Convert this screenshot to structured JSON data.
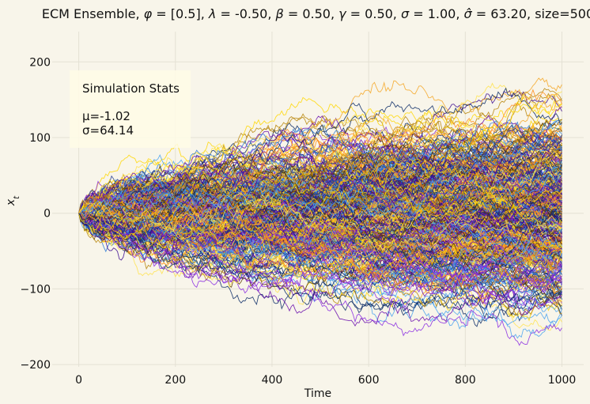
{
  "chart_data": {
    "type": "line",
    "title_main": "ECM Ensemble, ",
    "title_params": [
      {
        "sym": "φ",
        "hat": false,
        "value": "[0.5]"
      },
      {
        "sym": "λ",
        "hat": false,
        "value": "-0.50"
      },
      {
        "sym": "β",
        "hat": false,
        "value": "0.50"
      },
      {
        "sym": "γ",
        "hat": false,
        "value": "0.50"
      },
      {
        "sym": "σ",
        "hat": false,
        "value": "1.00"
      },
      {
        "sym": "σ",
        "hat": true,
        "value": "63.20"
      }
    ],
    "title_size": "size=500",
    "xlabel": "Time",
    "ylabel_base": "x",
    "ylabel_sub": "t",
    "xlim": [
      -55,
      1045
    ],
    "ylim": [
      -203,
      240
    ],
    "x_ticks": [
      0,
      200,
      400,
      600,
      800,
      1000
    ],
    "y_ticks": [
      -200,
      -100,
      0,
      100,
      200
    ],
    "grid": true,
    "legend": "none",
    "n_series": 500,
    "n_steps": 1000,
    "series_start": 0,
    "series_end_mean": -1.02,
    "series_end_std": 64.14,
    "palette": [
      "#1f3a93",
      "#2d7bd6",
      "#4aa3f0",
      "#ffd700",
      "#ffe34d",
      "#f5a623",
      "#ff8c1a",
      "#6a0dad",
      "#8a2be2",
      "#3d0a91",
      "#0a2a66",
      "#b8860b",
      "#5b3a00"
    ],
    "stats_box": {
      "title": "Simulation Stats",
      "mu": "μ=-1.02",
      "sigma": "σ=64.14"
    }
  },
  "colors": {
    "background": "#f8f5ea",
    "stats_box": "#fffbe6",
    "grid": "#e4e1d4"
  }
}
